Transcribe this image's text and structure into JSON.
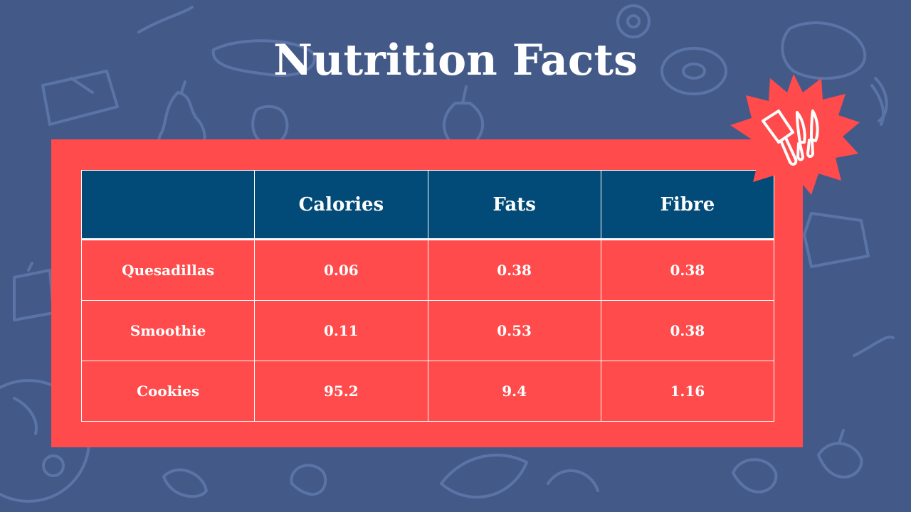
{
  "slide": {
    "title": "Nutrition Facts"
  },
  "table": {
    "headers": [
      "",
      "Calories",
      "Fats",
      "Fibre"
    ],
    "rows": [
      {
        "label": "Quesadillas",
        "cells": [
          "0.06",
          "0.38",
          "0.38"
        ]
      },
      {
        "label": "Smoothie",
        "cells": [
          "0.11",
          "0.53",
          "0.38"
        ]
      },
      {
        "label": "Cookies",
        "cells": [
          "95.2",
          "9.4",
          "1.16"
        ]
      }
    ]
  },
  "colors": {
    "background": "#435a89",
    "panel": "#ff4b4b",
    "header": "#024a77",
    "text": "#ffffff"
  },
  "icons": {
    "badge": "kitchen-knives-icon"
  }
}
